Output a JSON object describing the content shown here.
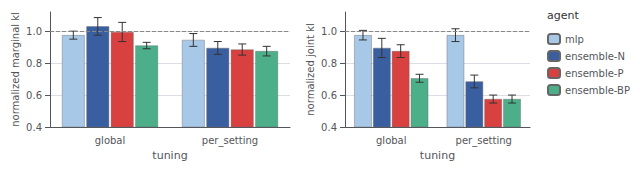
{
  "chart_data": [
    {
      "type": "bar",
      "ylabel": "normalized marginal kl",
      "xlabel": "tuning",
      "categories": [
        "global",
        "per_setting"
      ],
      "series": [
        {
          "name": "mlp",
          "color": "#a8c8e8",
          "values": [
            0.975,
            0.945
          ],
          "errors": [
            0.025,
            0.04
          ]
        },
        {
          "name": "ensemble-N",
          "color": "#3a5fa0",
          "values": [
            1.03,
            0.895
          ],
          "errors": [
            0.055,
            0.04
          ]
        },
        {
          "name": "ensemble-P",
          "color": "#d94040",
          "values": [
            0.995,
            0.885
          ],
          "errors": [
            0.06,
            0.035
          ]
        },
        {
          "name": "ensemble-BP",
          "color": "#4caf8a",
          "values": [
            0.91,
            0.875
          ],
          "errors": [
            0.02,
            0.03
          ]
        }
      ],
      "ylim": [
        0.4,
        1.12
      ],
      "yticks": [
        0.4,
        0.6,
        0.8,
        {
          "value": 1.0,
          "label": "1.0"
        }
      ],
      "reference_line": 1.0,
      "grid": true
    },
    {
      "type": "bar",
      "ylabel": "normalized joint kl",
      "xlabel": "tuning",
      "categories": [
        "global",
        "per_setting"
      ],
      "series": [
        {
          "name": "mlp",
          "color": "#a8c8e8",
          "values": [
            0.975,
            0.975
          ],
          "errors": [
            0.03,
            0.04
          ]
        },
        {
          "name": "ensemble-N",
          "color": "#3a5fa0",
          "values": [
            0.895,
            0.685
          ],
          "errors": [
            0.06,
            0.04
          ]
        },
        {
          "name": "ensemble-P",
          "color": "#d94040",
          "values": [
            0.875,
            0.575
          ],
          "errors": [
            0.04,
            0.025
          ]
        },
        {
          "name": "ensemble-BP",
          "color": "#4caf8a",
          "values": [
            0.705,
            0.575
          ],
          "errors": [
            0.025,
            0.025
          ]
        }
      ],
      "ylim": [
        0.4,
        1.12
      ],
      "yticks": [
        0.4,
        0.6,
        0.8,
        {
          "value": 1.0,
          "label": "1.0"
        }
      ],
      "reference_line": 1.0,
      "grid": true,
      "legend": "right",
      "legend_title": "agent"
    }
  ]
}
